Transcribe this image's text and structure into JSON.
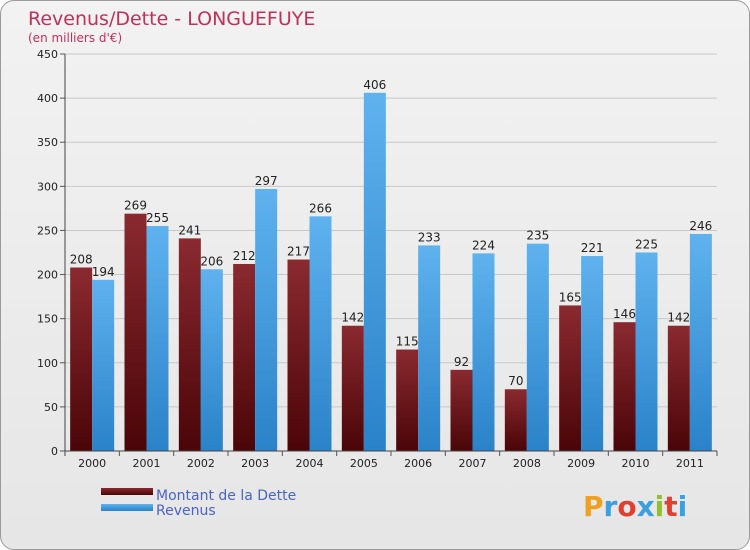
{
  "chart_data": {
    "type": "bar",
    "title": "Revenus/Dette - LONGUEFUYE",
    "subtitle": "(en milliers d'€)",
    "categories": [
      "2000",
      "2001",
      "2002",
      "2003",
      "2004",
      "2005",
      "2006",
      "2007",
      "2008",
      "2009",
      "2010",
      "2011"
    ],
    "series": [
      {
        "name": "Montant de la Dette",
        "values": [
          208,
          269,
          241,
          212,
          217,
          142,
          115,
          92,
          70,
          165,
          146,
          142
        ],
        "color": "#6b1018"
      },
      {
        "name": "Revenus",
        "values": [
          194,
          255,
          206,
          297,
          266,
          406,
          233,
          224,
          235,
          221,
          225,
          246
        ],
        "color": "#3d9ee3"
      }
    ],
    "ylim": [
      0,
      450
    ],
    "yticks": [
      0,
      50,
      100,
      150,
      200,
      250,
      300,
      350,
      400,
      450
    ],
    "grid": true,
    "legend_position": "bottom-left"
  },
  "brand": {
    "letters": [
      "P",
      "r",
      "o",
      "x",
      "i",
      "t",
      "i"
    ],
    "colors": [
      "#f0a020",
      "#3aa0e0",
      "#e04030",
      "#3aa0e0",
      "#90c030",
      "#e04030",
      "#3aa0e0"
    ]
  }
}
